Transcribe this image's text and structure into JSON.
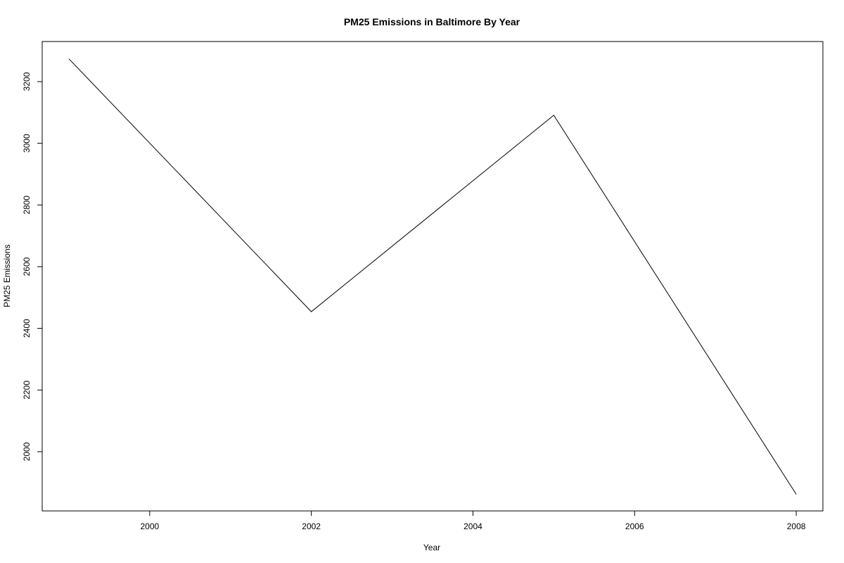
{
  "chart_data": {
    "type": "line",
    "title": "PM25 Emissions in Baltimore By Year",
    "xlabel": "Year",
    "ylabel": "PM25 Emissions",
    "x": [
      1999,
      2002,
      2005,
      2008
    ],
    "series": [
      {
        "values": [
          3274,
          2454,
          3091,
          1862
        ]
      }
    ],
    "xticks": [
      2000,
      2002,
      2004,
      2006,
      2008
    ],
    "xtick_labels": [
      "2000",
      "2002",
      "2004",
      "2006",
      "2008"
    ],
    "yticks": [
      2000,
      2200,
      2400,
      2600,
      2800,
      3000,
      3200
    ],
    "ytick_labels": [
      "2000",
      "2200",
      "2400",
      "2600",
      "2800",
      "3000",
      "3200"
    ],
    "xlim": [
      1998.67,
      2008.33
    ],
    "ylim": [
      1808,
      3330
    ],
    "grid": false,
    "legend": "none",
    "line_color": "#000000"
  }
}
